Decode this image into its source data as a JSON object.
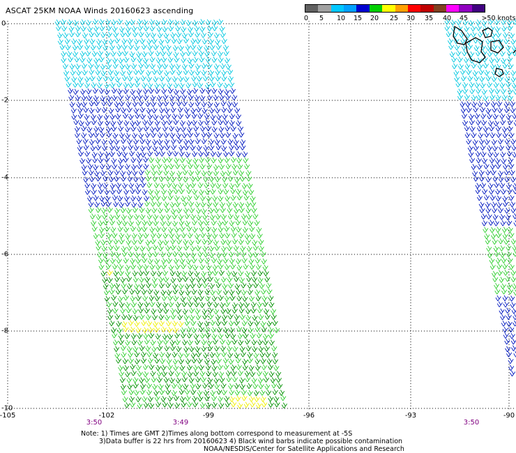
{
  "title": "ASCAT 25KM NOAA Winds 20160623 ascending",
  "legend": {
    "labels": [
      "0",
      "5",
      "10",
      "15",
      "20",
      "25",
      "30",
      "35",
      "40",
      "45",
      ">50 knots"
    ],
    "colors": [
      "#606060",
      "#a0a0a0",
      "#00c8ff",
      "#00a0ff",
      "#0000d0",
      "#00d000",
      "#ffff00",
      "#ffa000",
      "#ff0000",
      "#c00000",
      "#804020",
      "#ff00ff",
      "#9000c0",
      "#400080"
    ]
  },
  "x_ticks": [
    "-105",
    "-102",
    "-99",
    "-96",
    "-93",
    "-90"
  ],
  "y_ticks": [
    "0",
    "-2",
    "-4",
    "-6",
    "-8",
    "-10"
  ],
  "times": [
    "3:50",
    "3:49",
    "3:50"
  ],
  "note": {
    "line1": "Note: 1) Times are GMT 2)Times along bottom correspond to measurement at -5S",
    "line2": "3)Data buffer is 22 hrs from 20160623 4) Black wind barbs indicate possible contamination",
    "line3": "NOAA/NESDIS/Center for Satellite Applications and Research"
  },
  "colors": {
    "cyan": "#00c8e0",
    "blue": "#0018c0",
    "green_light": "#30d030",
    "green_dark": "#009000",
    "yellow": "#f0f000",
    "grid": "#000000",
    "time_text": "#800080"
  }
}
